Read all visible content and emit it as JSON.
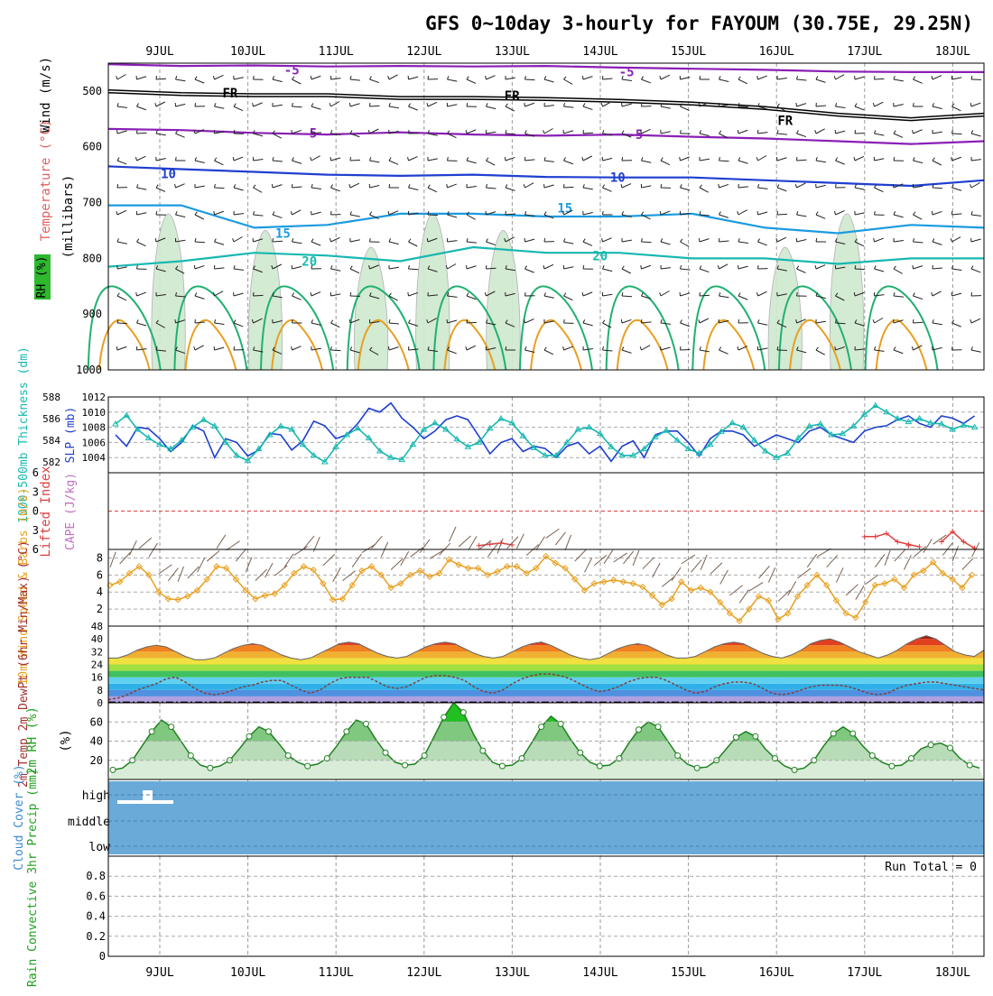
{
  "title": "GFS 0~10day 3-hourly for FAYOUM (30.75E, 29.25N)",
  "dates": [
    "9JUL",
    "10JUL",
    "11JUL",
    "12JUL",
    "13JUL",
    "14JUL",
    "15JUL",
    "16JUL",
    "17JUL",
    "18JUL"
  ],
  "colors": {
    "purple": "#8a1fb5",
    "black": "#000000",
    "blue": "#1f3fcf",
    "lightblue": "#1a9be0",
    "teal": "#17b8b0",
    "green": "#20b070",
    "orange": "#e8a020",
    "darkorange": "#e06010",
    "magenta": "#e0108a",
    "cloud": "#6aaad8",
    "rh_fill": "#cfe8cf"
  },
  "chart_data": [
    {
      "name": "upper-air",
      "type": "line",
      "ylabel": "(millibars)",
      "ylabel_left": [
        "Wind (m/s)",
        "Temperature (°C)",
        "RH (%)"
      ],
      "y_ticks": [
        500,
        600,
        700,
        800,
        900,
        1000
      ],
      "ylim": [
        450,
        1000
      ],
      "contour_labels": [
        {
          "text": "-5",
          "x": 2.0,
          "p": 462
        },
        {
          "text": "-5",
          "x": 5.8,
          "p": 465
        },
        {
          "text": "FR",
          "x": 1.3,
          "p": 503
        },
        {
          "text": "FR",
          "x": 4.5,
          "p": 508
        },
        {
          "text": "FR",
          "x": 7.6,
          "p": 553
        },
        {
          "text": "-5",
          "x": 2.2,
          "p": 575
        },
        {
          "text": "-5",
          "x": 5.9,
          "p": 578
        },
        {
          "text": "10",
          "x": 0.6,
          "p": 648
        },
        {
          "text": "10",
          "x": 5.7,
          "p": 655
        },
        {
          "text": "15",
          "x": 1.9,
          "p": 755
        },
        {
          "text": "15",
          "x": 5.1,
          "p": 710
        },
        {
          "text": "20",
          "x": 2.2,
          "p": 805
        },
        {
          "text": "20",
          "x": 5.5,
          "p": 795
        }
      ],
      "series": [
        {
          "color": "#8a1fb5",
          "p": [
            452,
            455,
            454,
            456,
            455,
            456,
            455,
            458,
            460,
            462,
            465,
            466,
            466
          ]
        },
        {
          "color": "#000000",
          "p": [
            498,
            503,
            505,
            505,
            510,
            510,
            512,
            515,
            520,
            528,
            540,
            548,
            540
          ]
        },
        {
          "color": "#8a1fb5",
          "p": [
            568,
            570,
            575,
            578,
            574,
            578,
            580,
            578,
            582,
            585,
            590,
            595,
            590
          ]
        },
        {
          "color": "#1f3fcf",
          "p": [
            635,
            640,
            645,
            650,
            652,
            650,
            654,
            655,
            655,
            660,
            665,
            670,
            660
          ]
        },
        {
          "color": "#1a9be0",
          "p": [
            705,
            705,
            745,
            740,
            720,
            720,
            725,
            725,
            720,
            745,
            755,
            740,
            745
          ]
        },
        {
          "color": "#17b8b0",
          "p": [
            815,
            805,
            790,
            795,
            805,
            780,
            790,
            790,
            800,
            800,
            810,
            800,
            800
          ]
        }
      ]
    },
    {
      "name": "slp-thickness",
      "type": "line",
      "ylabel_left": "1000-500mb Thickness (dm)",
      "ylabel_right": "SLP (mb)",
      "thickness_ticks": [
        582,
        584,
        586,
        588
      ],
      "slp_ticks": [
        1004,
        1006,
        1008,
        1010,
        1012
      ],
      "series": [
        {
          "name": "SLP",
          "color": "#1f3fcf",
          "values": [
            1007.0,
            1005.5,
            1008.0,
            1007.8,
            1006.5,
            1004.8,
            1006.0,
            1008.2,
            1007.5,
            1004.0,
            1006.5,
            1006.0,
            1004.2,
            1005.0,
            1007.2,
            1007.0,
            1005.0,
            1006.2,
            1008.8,
            1008.2,
            1006.5,
            1007.0,
            1008.5,
            1010.5,
            1010.0,
            1011.2,
            1009.2,
            1008.0,
            1006.5,
            1007.5,
            1009.0,
            1009.5,
            1009.0,
            1006.8,
            1004.5,
            1006.0,
            1006.5,
            1004.8,
            1005.5,
            1005.2,
            1004.0,
            1005.5,
            1006.0,
            1004.5,
            1005.5,
            1003.5,
            1005.5,
            1006.2,
            1004.0,
            1007.0,
            1007.5,
            1007.5,
            1006.0,
            1004.2,
            1006.5,
            1007.5,
            1007.5,
            1007.0,
            1005.5,
            1006.2,
            1007.0,
            1006.5,
            1006.0,
            1007.5,
            1008.0,
            1007.0,
            1006.5,
            1006.0,
            1007.5,
            1008.0,
            1008.2,
            1009.0,
            1009.5,
            1008.5,
            1008.0,
            1009.5,
            1009.2,
            1008.5,
            1009.5
          ]
        },
        {
          "name": "Thickness",
          "color": "#17b8b0",
          "values": [
            585.5,
            586.3,
            585.0,
            584.2,
            583.6,
            583.2,
            584.0,
            585.2,
            585.9,
            585.3,
            583.8,
            582.6,
            582.1,
            583.2,
            584.5,
            585.3,
            585.0,
            583.6,
            582.6,
            582.0,
            583.4,
            584.5,
            585.1,
            584.2,
            583.0,
            582.4,
            582.2,
            583.6,
            585.0,
            585.6,
            585.0,
            584.1,
            583.4,
            583.8,
            585.1,
            586.0,
            585.6,
            584.4,
            583.3,
            582.6,
            582.6,
            583.8,
            585.0,
            585.2,
            584.6,
            583.4,
            582.6,
            582.6,
            583.2,
            584.3,
            584.9,
            584.0,
            583.2,
            582.8,
            583.6,
            584.8,
            585.6,
            585.2,
            584.0,
            583.0,
            582.4,
            582.8,
            584.2,
            585.3,
            585.5,
            584.5,
            584.6,
            585.3,
            586.4,
            587.2,
            586.6,
            586.0,
            585.7,
            586.0,
            585.6,
            585.5,
            585.0,
            585.4,
            585.2
          ]
        }
      ]
    },
    {
      "name": "cape-li",
      "type": "line",
      "ylabel_left": "Lifted Index",
      "ylabel_right": "CAPE (J/kg)",
      "li_ticks": [
        -6,
        -3,
        0,
        3,
        6
      ],
      "li_series": [
        {
          "start": 33,
          "values": [
            5.4,
            5.2,
            5.0,
            5.3
          ]
        },
        {
          "start": 68,
          "values": [
            4.0,
            4.0,
            3.5,
            4.8,
            5.2,
            5.6
          ]
        },
        {
          "start": 72,
          "values": [
            5.4
          ]
        },
        {
          "start": 75,
          "values": [
            4.8,
            3.2,
            4.8,
            5.8
          ]
        }
      ]
    },
    {
      "name": "wind-10m",
      "type": "line",
      "ylabel_left": "10m Wind Speed & Barbs (m/s)",
      "y_ticks": [
        2,
        4,
        6,
        8
      ],
      "ylim": [
        0,
        9
      ],
      "values": [
        4.8,
        5.2,
        6.2,
        7.0,
        6.0,
        4.0,
        3.2,
        3.1,
        3.5,
        4.2,
        5.5,
        7.0,
        6.8,
        5.5,
        4.2,
        3.2,
        3.6,
        3.8,
        4.8,
        6.2,
        7.0,
        6.6,
        5.0,
        3.1,
        3.2,
        4.8,
        6.5,
        7.0,
        6.0,
        4.5,
        5.0,
        6.0,
        6.5,
        5.8,
        6.2,
        7.8,
        7.2,
        6.8,
        6.8,
        6.0,
        6.4,
        7.0,
        7.0,
        6.2,
        6.8,
        8.2,
        7.4,
        6.8,
        5.5,
        4.2,
        5.0,
        5.2,
        5.4,
        5.2,
        5.0,
        4.6,
        3.6,
        2.5,
        3.2,
        5.2,
        4.2,
        4.5,
        4.0,
        2.8,
        1.5,
        0.6,
        2.0,
        3.5,
        3.0,
        0.8,
        1.5,
        3.5,
        4.8,
        6.0,
        4.8,
        3.0,
        1.5,
        1.0,
        2.8,
        4.8,
        5.0,
        5.5,
        4.5,
        6.0,
        6.5,
        7.5,
        6.2,
        5.5,
        4.5,
        6.0
      ]
    },
    {
      "name": "temp-2m",
      "type": "area",
      "ylabel_left": "2m Temp 2m DewPt (6hr Min/Max) (°C)",
      "y_ticks": [
        0,
        8,
        16,
        24,
        32,
        40,
        48
      ],
      "ylim": [
        0,
        48
      ],
      "temp": [
        28,
        28,
        30,
        33,
        35,
        36,
        35,
        32,
        29,
        27,
        27,
        28,
        31,
        34,
        36,
        37,
        36,
        33,
        30,
        28,
        27,
        28,
        31,
        34,
        37,
        38,
        37,
        34,
        31,
        29,
        28,
        29,
        32,
        35,
        37,
        38,
        37,
        34,
        31,
        29,
        28,
        29,
        32,
        35,
        37,
        38,
        36,
        33,
        30,
        28,
        27,
        28,
        31,
        34,
        36,
        37,
        36,
        33,
        30,
        28,
        28,
        29,
        32,
        35,
        37,
        38,
        37,
        34,
        31,
        29,
        28,
        30,
        33,
        37,
        39,
        40,
        38,
        35,
        32,
        30,
        28,
        30,
        33,
        37,
        40,
        42,
        40,
        36,
        32,
        30,
        29,
        33
      ],
      "dewpt": [
        2,
        3,
        5,
        8,
        10,
        12,
        15,
        16,
        13,
        9,
        6,
        5,
        6,
        8,
        10,
        11,
        13,
        14,
        14,
        11,
        8,
        6,
        8,
        12,
        15,
        16,
        16,
        16,
        13,
        10,
        9,
        10,
        13,
        16,
        17,
        17,
        16,
        14,
        10,
        7,
        6,
        8,
        12,
        15,
        17,
        18,
        18,
        17,
        15,
        12,
        9,
        7,
        8,
        10,
        13,
        15,
        16,
        16,
        14,
        11,
        8,
        6,
        7,
        10,
        12,
        13,
        13,
        12,
        9,
        6,
        5,
        6,
        8,
        10,
        11,
        11,
        11,
        10,
        8,
        6,
        5,
        6,
        9,
        11,
        12,
        13,
        13,
        12,
        11,
        10,
        9,
        8
      ]
    },
    {
      "name": "rh-2m",
      "type": "area",
      "ylabel_left": "2m RH (%)",
      "y_ticks": [
        20,
        40,
        60
      ],
      "ylim": [
        0,
        80
      ],
      "values": [
        10,
        12,
        20,
        35,
        50,
        62,
        55,
        40,
        25,
        15,
        12,
        14,
        20,
        32,
        45,
        55,
        50,
        38,
        25,
        18,
        14,
        16,
        22,
        35,
        50,
        62,
        58,
        42,
        28,
        18,
        15,
        16,
        25,
        45,
        65,
        80,
        70,
        48,
        30,
        18,
        14,
        15,
        22,
        38,
        55,
        66,
        58,
        42,
        28,
        18,
        14,
        15,
        22,
        38,
        52,
        60,
        55,
        40,
        25,
        16,
        12,
        13,
        20,
        32,
        44,
        50,
        45,
        32,
        22,
        14,
        10,
        12,
        20,
        35,
        48,
        55,
        48,
        35,
        25,
        18,
        14,
        15,
        22,
        32,
        36,
        38,
        33,
        22,
        15,
        12
      ]
    },
    {
      "name": "cloud-cover",
      "type": "bar",
      "ylabel_left": "Cloud Cover (%)",
      "levels": [
        "high",
        "middle",
        "low"
      ]
    },
    {
      "name": "precip",
      "type": "bar",
      "ylabel_left": "Total / Rain Convective 3hr Precip (mm)",
      "y_ticks": [
        0,
        0.2,
        0.4,
        0.6,
        0.8
      ],
      "ylim": [
        0,
        1
      ],
      "run_total": "Run Total = 0"
    }
  ]
}
